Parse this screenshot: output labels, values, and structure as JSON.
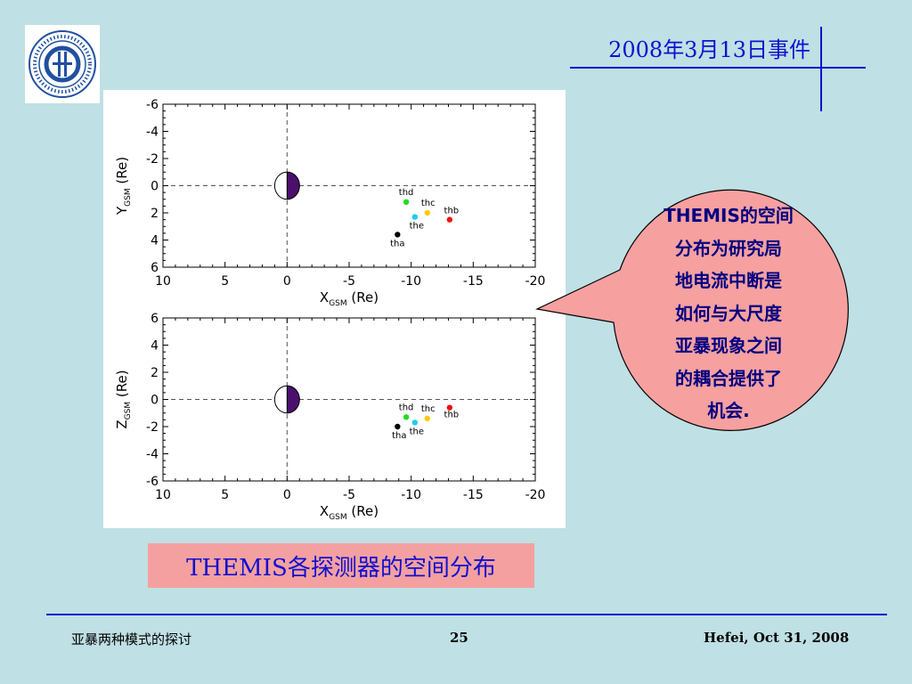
{
  "slide": {
    "title": "2008年3月13日事件",
    "caption": "THEMIS各探测器的空间分布",
    "callout_lines": [
      "THEMIS的空间",
      "分布为研究局",
      "地电流中断是",
      "如何与大尺度",
      "亚暴现象之间",
      "的耦合提供了",
      "机会."
    ]
  },
  "footer": {
    "left": "亚暴两种模式的探讨",
    "page": "25",
    "right": "Hefei, Oct 31, 2008"
  },
  "logo": {
    "text": "UNIVERSITY OF SCIENCE AND TECHNOLOGY OF CHINA · 中国科学技术大学"
  },
  "colors": {
    "slide_bg": "#bfe0e4",
    "title_blue": "#1010d0",
    "callout_fill": "#f7a0a0",
    "earth_night": "#4b0f6e"
  },
  "chart_data": [
    {
      "type": "scatter",
      "xlabel_main": "X",
      "xlabel_sub": "GSM",
      "xlabel_unit": " (Re)",
      "ylabel_main": "Y",
      "ylabel_sub": "GSM",
      "ylabel_unit": " (Re)",
      "xlim": [
        10,
        -20
      ],
      "ylim": [
        -6,
        6
      ],
      "y_inverted": true,
      "xticks": [
        10,
        5,
        0,
        -5,
        -10,
        -15,
        -20
      ],
      "yticks": [
        -6,
        -4,
        -2,
        0,
        2,
        4,
        6
      ],
      "ytick_labels": [
        "-6",
        "-4",
        "-2",
        "0",
        "2",
        "4",
        "6"
      ],
      "points": [
        {
          "name": "tha",
          "x": -8.9,
          "y": 3.6,
          "color": "#000000",
          "label_dx": 0,
          "label_dy": 13
        },
        {
          "name": "thd",
          "x": -9.6,
          "y": 1.2,
          "color": "#22dd22",
          "label_dx": 0,
          "label_dy": -8
        },
        {
          "name": "the",
          "x": -10.3,
          "y": 2.3,
          "color": "#22ccee",
          "label_dx": 2,
          "label_dy": 13
        },
        {
          "name": "thc",
          "x": -11.3,
          "y": 2.0,
          "color": "#ffcc00",
          "label_dx": 1,
          "label_dy": -8
        },
        {
          "name": "thb",
          "x": -13.1,
          "y": 2.5,
          "color": "#ee1111",
          "label_dx": 2,
          "label_dy": -7
        }
      ]
    },
    {
      "type": "scatter",
      "xlabel_main": "X",
      "xlabel_sub": "GSM",
      "xlabel_unit": " (Re)",
      "ylabel_main": "Z",
      "ylabel_sub": "GSM",
      "ylabel_unit": " (Re)",
      "xlim": [
        10,
        -20
      ],
      "ylim": [
        -6,
        6
      ],
      "y_inverted": false,
      "xticks": [
        10,
        5,
        0,
        -5,
        -10,
        -15,
        -20
      ],
      "yticks": [
        6,
        4,
        2,
        0,
        -2,
        -4,
        -6
      ],
      "ytick_labels": [
        "6",
        "4",
        "2",
        "0",
        "-2",
        "-4",
        "-6"
      ],
      "points": [
        {
          "name": "tha",
          "x": -8.9,
          "y": -2.0,
          "color": "#000000",
          "label_dx": 2,
          "label_dy": 13
        },
        {
          "name": "thd",
          "x": -9.6,
          "y": -1.3,
          "color": "#22dd22",
          "label_dx": 0,
          "label_dy": -8
        },
        {
          "name": "the",
          "x": -10.3,
          "y": -1.7,
          "color": "#22ccee",
          "label_dx": 2,
          "label_dy": 13
        },
        {
          "name": "thc",
          "x": -11.3,
          "y": -1.4,
          "color": "#ffcc00",
          "label_dx": 1,
          "label_dy": -8
        },
        {
          "name": "thb",
          "x": -13.1,
          "y": -0.6,
          "color": "#ee1111",
          "label_dx": 2,
          "label_dy": 11
        }
      ]
    }
  ]
}
